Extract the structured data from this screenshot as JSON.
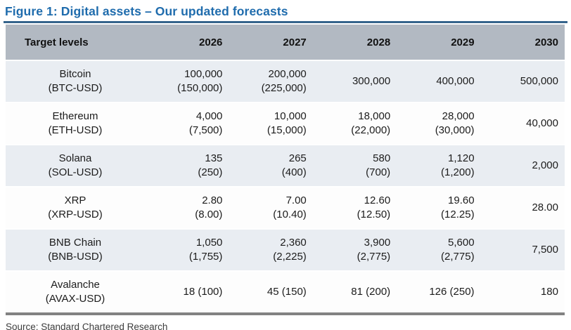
{
  "figure": {
    "title": "Figure 1: Digital assets – Our updated forecasts",
    "source": "Source: Standard Chartered Research"
  },
  "chart_data": {
    "type": "table",
    "title": "Figure 1: Digital assets – Our updated forecasts",
    "columns": [
      "Target levels",
      "2026",
      "2027",
      "2028",
      "2029",
      "2030"
    ],
    "rows": [
      {
        "label": "Bitcoin\n(BTC-USD)",
        "values": [
          "100,000\n(150,000)",
          "200,000\n(225,000)",
          "300,000",
          "400,000",
          "500,000"
        ]
      },
      {
        "label": "Ethereum\n(ETH-USD)",
        "values": [
          "4,000\n(7,500)",
          "10,000\n(15,000)",
          "18,000\n(22,000)",
          "28,000\n(30,000)",
          "40,000"
        ]
      },
      {
        "label": "Solana\n(SOL-USD)",
        "values": [
          "135\n(250)",
          "265\n(400)",
          "580\n(700)",
          "1,120\n(1,200)",
          "2,000"
        ]
      },
      {
        "label": "XRP\n(XRP-USD)",
        "values": [
          "2.80\n(8.00)",
          "7.00\n(10.40)",
          "12.60\n(12.50)",
          "19.60\n(12.25)",
          "28.00"
        ]
      },
      {
        "label": "BNB Chain\n(BNB-USD)",
        "values": [
          "1,050\n(1,755)",
          "2,360\n(2,225)",
          "3,900\n(2,775)",
          "5,600\n(2,775)",
          "7,500"
        ]
      },
      {
        "label": "Avalanche\n(AVAX-USD)",
        "values": [
          "18 (100)",
          "45 (150)",
          "81 (200)",
          "126 (250)",
          "180"
        ]
      }
    ]
  },
  "colors": {
    "title": "#1f6cad",
    "title_underline": "#35648c",
    "header_bg": "#b2b9c2",
    "row_alt_bg": "#e9edf2",
    "bottom_border": "#828282"
  }
}
